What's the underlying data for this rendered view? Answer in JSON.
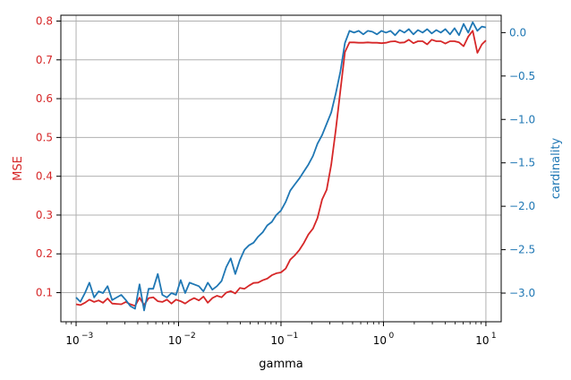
{
  "chart_data": {
    "type": "line",
    "xlabel": "gamma",
    "ylabel_left": "MSE",
    "ylabel_right": "cardinality",
    "x_scale": "log",
    "xlim": [
      0.00071,
      14.1
    ],
    "ylim_left": [
      0.025,
      0.815
    ],
    "ylim_right": [
      -3.33,
      0.2
    ],
    "grid": true,
    "colors": {
      "left": "#d62728",
      "right": "#1f77b4",
      "grid": "#b0b0b0",
      "spine": "#000000"
    },
    "x_ticks": [
      {
        "value": 0.001,
        "label": "10",
        "exp": "−3"
      },
      {
        "value": 0.01,
        "label": "10",
        "exp": "−2"
      },
      {
        "value": 0.1,
        "label": "10",
        "exp": "−1"
      },
      {
        "value": 1,
        "label": "10",
        "exp": "0"
      },
      {
        "value": 10,
        "label": "10",
        "exp": "1"
      }
    ],
    "y_ticks_left": [
      {
        "value": 0.1,
        "label": "0.1"
      },
      {
        "value": 0.2,
        "label": "0.2"
      },
      {
        "value": 0.3,
        "label": "0.3"
      },
      {
        "value": 0.4,
        "label": "0.4"
      },
      {
        "value": 0.5,
        "label": "0.5"
      },
      {
        "value": 0.6,
        "label": "0.6"
      },
      {
        "value": 0.7,
        "label": "0.7"
      },
      {
        "value": 0.8,
        "label": "0.8"
      }
    ],
    "y_ticks_right": [
      {
        "value": 0.0,
        "label": "0.0"
      },
      {
        "value": -0.5,
        "label": "−0.5"
      },
      {
        "value": -1.0,
        "label": "−1.0"
      },
      {
        "value": -1.5,
        "label": "−1.5"
      },
      {
        "value": -2.0,
        "label": "−2.0"
      },
      {
        "value": -2.5,
        "label": "−2.5"
      },
      {
        "value": -3.0,
        "label": "−3.0"
      }
    ],
    "series": [
      {
        "axis": "left",
        "color": "#d62728",
        "points": [
          [
            0.001,
            0.07
          ],
          [
            0.0011,
            0.068
          ],
          [
            0.00122,
            0.074
          ],
          [
            0.00135,
            0.082
          ],
          [
            0.0015,
            0.076
          ],
          [
            0.00166,
            0.08
          ],
          [
            0.00183,
            0.074
          ],
          [
            0.00203,
            0.085
          ],
          [
            0.00225,
            0.072
          ],
          [
            0.00249,
            0.071
          ],
          [
            0.00276,
            0.07
          ],
          [
            0.00306,
            0.076
          ],
          [
            0.00339,
            0.07
          ],
          [
            0.00376,
            0.066
          ],
          [
            0.00416,
            0.087
          ],
          [
            0.00461,
            0.068
          ],
          [
            0.00511,
            0.086
          ],
          [
            0.00566,
            0.088
          ],
          [
            0.00627,
            0.078
          ],
          [
            0.00695,
            0.076
          ],
          [
            0.0077,
            0.082
          ],
          [
            0.00853,
            0.072
          ],
          [
            0.00945,
            0.082
          ],
          [
            0.0105,
            0.078
          ],
          [
            0.0116,
            0.072
          ],
          [
            0.0128,
            0.08
          ],
          [
            0.0142,
            0.086
          ],
          [
            0.0158,
            0.08
          ],
          [
            0.0175,
            0.09
          ],
          [
            0.0193,
            0.074
          ],
          [
            0.0214,
            0.086
          ],
          [
            0.0237,
            0.092
          ],
          [
            0.0263,
            0.088
          ],
          [
            0.0292,
            0.1
          ],
          [
            0.0323,
            0.104
          ],
          [
            0.0358,
            0.098
          ],
          [
            0.0397,
            0.112
          ],
          [
            0.044,
            0.11
          ],
          [
            0.0487,
            0.118
          ],
          [
            0.054,
            0.125
          ],
          [
            0.0598,
            0.126
          ],
          [
            0.0663,
            0.132
          ],
          [
            0.0734,
            0.136
          ],
          [
            0.0814,
            0.145
          ],
          [
            0.0902,
            0.15
          ],
          [
            0.0999,
            0.152
          ],
          [
            0.111,
            0.162
          ],
          [
            0.123,
            0.185
          ],
          [
            0.136,
            0.196
          ],
          [
            0.151,
            0.21
          ],
          [
            0.167,
            0.228
          ],
          [
            0.185,
            0.25
          ],
          [
            0.205,
            0.265
          ],
          [
            0.227,
            0.292
          ],
          [
            0.252,
            0.34
          ],
          [
            0.279,
            0.365
          ],
          [
            0.309,
            0.43
          ],
          [
            0.343,
            0.52
          ],
          [
            0.38,
            0.62
          ],
          [
            0.421,
            0.72
          ],
          [
            0.466,
            0.745
          ],
          [
            0.517,
            0.745
          ],
          [
            0.573,
            0.744
          ],
          [
            0.635,
            0.744
          ],
          [
            0.703,
            0.745
          ],
          [
            0.779,
            0.744
          ],
          [
            0.864,
            0.744
          ],
          [
            0.957,
            0.743
          ],
          [
            1.06,
            0.744
          ],
          [
            1.17,
            0.747
          ],
          [
            1.3,
            0.748
          ],
          [
            1.44,
            0.744
          ],
          [
            1.6,
            0.745
          ],
          [
            1.77,
            0.752
          ],
          [
            1.96,
            0.743
          ],
          [
            2.17,
            0.748
          ],
          [
            2.41,
            0.748
          ],
          [
            2.67,
            0.74
          ],
          [
            2.96,
            0.752
          ],
          [
            3.28,
            0.748
          ],
          [
            3.63,
            0.748
          ],
          [
            4.02,
            0.742
          ],
          [
            4.46,
            0.748
          ],
          [
            4.94,
            0.748
          ],
          [
            5.47,
            0.745
          ],
          [
            6.06,
            0.735
          ],
          [
            6.72,
            0.76
          ],
          [
            7.44,
            0.775
          ],
          [
            8.25,
            0.718
          ],
          [
            9.14,
            0.74
          ],
          [
            10.0,
            0.75
          ]
        ]
      },
      {
        "axis": "right",
        "color": "#1f77b4",
        "points": [
          [
            0.001,
            -3.05
          ],
          [
            0.0011,
            -3.1
          ],
          [
            0.00122,
            -3.0
          ],
          [
            0.00135,
            -2.88
          ],
          [
            0.0015,
            -3.05
          ],
          [
            0.00166,
            -2.98
          ],
          [
            0.00183,
            -3.0
          ],
          [
            0.00203,
            -2.92
          ],
          [
            0.00225,
            -3.08
          ],
          [
            0.00249,
            -3.05
          ],
          [
            0.00276,
            -3.02
          ],
          [
            0.00306,
            -3.08
          ],
          [
            0.00339,
            -3.15
          ],
          [
            0.00376,
            -3.18
          ],
          [
            0.00416,
            -2.9
          ],
          [
            0.00461,
            -3.2
          ],
          [
            0.00511,
            -2.95
          ],
          [
            0.00566,
            -2.95
          ],
          [
            0.00627,
            -2.78
          ],
          [
            0.00695,
            -3.02
          ],
          [
            0.0077,
            -3.05
          ],
          [
            0.00853,
            -3.0
          ],
          [
            0.00945,
            -3.02
          ],
          [
            0.0105,
            -2.85
          ],
          [
            0.0116,
            -3.0
          ],
          [
            0.0128,
            -2.88
          ],
          [
            0.0142,
            -2.9
          ],
          [
            0.0158,
            -2.92
          ],
          [
            0.0175,
            -2.98
          ],
          [
            0.0193,
            -2.88
          ],
          [
            0.0214,
            -2.96
          ],
          [
            0.0237,
            -2.92
          ],
          [
            0.0263,
            -2.86
          ],
          [
            0.0292,
            -2.7
          ],
          [
            0.0323,
            -2.6
          ],
          [
            0.0358,
            -2.78
          ],
          [
            0.0397,
            -2.62
          ],
          [
            0.044,
            -2.5
          ],
          [
            0.0487,
            -2.45
          ],
          [
            0.054,
            -2.42
          ],
          [
            0.0598,
            -2.35
          ],
          [
            0.0663,
            -2.3
          ],
          [
            0.0734,
            -2.22
          ],
          [
            0.0814,
            -2.18
          ],
          [
            0.0902,
            -2.1
          ],
          [
            0.0999,
            -2.05
          ],
          [
            0.111,
            -1.95
          ],
          [
            0.123,
            -1.82
          ],
          [
            0.136,
            -1.75
          ],
          [
            0.151,
            -1.68
          ],
          [
            0.167,
            -1.6
          ],
          [
            0.185,
            -1.52
          ],
          [
            0.205,
            -1.42
          ],
          [
            0.227,
            -1.28
          ],
          [
            0.252,
            -1.18
          ],
          [
            0.279,
            -1.05
          ],
          [
            0.309,
            -0.92
          ],
          [
            0.343,
            -0.7
          ],
          [
            0.38,
            -0.45
          ],
          [
            0.421,
            -0.12
          ],
          [
            0.466,
            0.02
          ],
          [
            0.517,
            0.0
          ],
          [
            0.573,
            0.02
          ],
          [
            0.635,
            -0.02
          ],
          [
            0.703,
            0.02
          ],
          [
            0.779,
            0.01
          ],
          [
            0.864,
            -0.02
          ],
          [
            0.957,
            0.02
          ],
          [
            1.06,
            0.0
          ],
          [
            1.17,
            0.02
          ],
          [
            1.3,
            -0.03
          ],
          [
            1.44,
            0.03
          ],
          [
            1.6,
            0.0
          ],
          [
            1.77,
            0.04
          ],
          [
            1.96,
            -0.02
          ],
          [
            2.17,
            0.03
          ],
          [
            2.41,
            0.0
          ],
          [
            2.67,
            0.04
          ],
          [
            2.96,
            -0.01
          ],
          [
            3.28,
            0.03
          ],
          [
            3.63,
            0.0
          ],
          [
            4.02,
            0.04
          ],
          [
            4.46,
            -0.02
          ],
          [
            4.94,
            0.05
          ],
          [
            5.47,
            -0.03
          ],
          [
            6.06,
            0.1
          ],
          [
            6.72,
            0.0
          ],
          [
            7.44,
            0.12
          ],
          [
            8.25,
            0.02
          ],
          [
            9.14,
            0.07
          ],
          [
            10.0,
            0.06
          ]
        ]
      }
    ]
  }
}
